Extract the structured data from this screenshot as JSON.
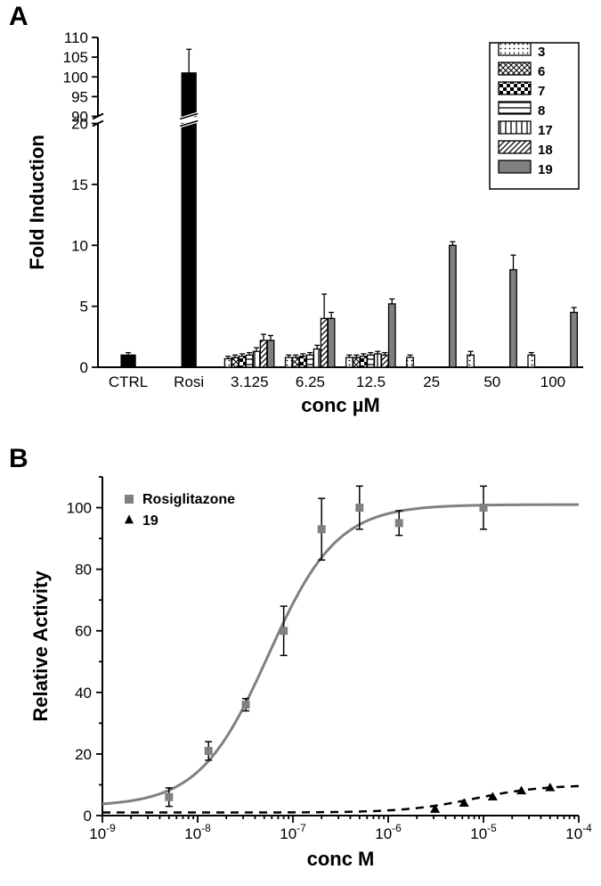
{
  "panelA": {
    "label": "A",
    "type": "bar",
    "ylabel": "Fold Induction",
    "xlabel": "conc µM",
    "axis_title_fontsize": 22,
    "tick_fontsize": 17,
    "legend_fontsize": 15,
    "y_lower": {
      "min": 0,
      "max": 20,
      "ticks": [
        0,
        5,
        10,
        15,
        20
      ]
    },
    "y_upper": {
      "min": 90,
      "max": 110,
      "ticks": [
        90,
        95,
        100,
        105,
        110
      ]
    },
    "categories": [
      "CTRL",
      "Rosi",
      "3.125",
      "6.25",
      "12.5",
      "25",
      "50",
      "100"
    ],
    "series": [
      {
        "name": "3",
        "pattern": "dots",
        "fill": "#ffffff"
      },
      {
        "name": "6",
        "pattern": "crosshatch",
        "fill": "#ffffff"
      },
      {
        "name": "7",
        "pattern": "checker",
        "fill": "#ffffff"
      },
      {
        "name": "8",
        "pattern": "hstripe",
        "fill": "#ffffff"
      },
      {
        "name": "17",
        "pattern": "vstripe",
        "fill": "#ffffff"
      },
      {
        "name": "18",
        "pattern": "diag",
        "fill": "#ffffff"
      },
      {
        "name": "19",
        "pattern": "solid",
        "fill": "#808080"
      }
    ],
    "ctrl": {
      "value": 1.0,
      "err": 0.2,
      "fill": "#000000"
    },
    "rosi": {
      "value": 101,
      "err": 6,
      "fill": "#000000"
    },
    "groups": {
      "3.125": [
        0.7,
        0.8,
        0.9,
        1.0,
        1.3,
        2.2,
        2.2
      ],
      "6.25": [
        0.8,
        0.8,
        0.9,
        1.0,
        1.5,
        4.0,
        4.0
      ],
      "12.5": [
        0.8,
        0.8,
        0.9,
        1.0,
        1.1,
        1.0,
        5.2
      ],
      "25": [
        0.8,
        0,
        0,
        0,
        0,
        0,
        10.0
      ],
      "50": [
        1.0,
        0,
        0,
        0,
        0,
        0,
        8.0
      ],
      "100": [
        1.0,
        0,
        0,
        0,
        0,
        0,
        4.5
      ]
    },
    "errors": {
      "3.125": [
        0.2,
        0.2,
        0.2,
        0.2,
        0.3,
        0.5,
        0.4
      ],
      "6.25": [
        0.2,
        0.2,
        0.2,
        0.2,
        0.3,
        2.0,
        0.5
      ],
      "12.5": [
        0.2,
        0.2,
        0.2,
        0.2,
        0.2,
        0.2,
        0.4
      ],
      "25": [
        0.2,
        0,
        0,
        0,
        0,
        0,
        0.3
      ],
      "50": [
        0.3,
        0,
        0,
        0,
        0,
        0,
        1.2
      ],
      "100": [
        0.2,
        0,
        0,
        0,
        0,
        0,
        0.4
      ]
    },
    "colors": {
      "axis": "#000000",
      "bar_stroke": "#000000",
      "background": "#ffffff"
    }
  },
  "panelB": {
    "label": "B",
    "type": "dose-response",
    "ylabel": "Relative Activity",
    "xlabel": "conc M",
    "axis_title_fontsize": 22,
    "tick_fontsize": 17,
    "legend_fontsize": 16,
    "x_log": true,
    "xlim": [
      1e-09,
      0.0001
    ],
    "ylim": [
      0,
      110
    ],
    "yticks": [
      0,
      20,
      40,
      60,
      80,
      100
    ],
    "xticks_exp": [
      -9,
      -8,
      -7,
      -6,
      -5,
      -4
    ],
    "series": [
      {
        "name": "Rosiglitazone",
        "marker": "square",
        "marker_size": 8,
        "color": "#808080",
        "line_style": "solid",
        "line_width": 3,
        "points": [
          {
            "x": 5e-09,
            "y": 6,
            "err": 3
          },
          {
            "x": 1.3e-08,
            "y": 21,
            "err": 3
          },
          {
            "x": 3.2e-08,
            "y": 36,
            "err": 2
          },
          {
            "x": 8e-08,
            "y": 60,
            "err": 8
          },
          {
            "x": 2e-07,
            "y": 93,
            "err": 10
          },
          {
            "x": 5e-07,
            "y": 100,
            "err": 7
          },
          {
            "x": 1.3e-06,
            "y": 95,
            "err": 4
          },
          {
            "x": 1e-05,
            "y": 100,
            "err": 7
          }
        ],
        "curve": {
          "bottom": 3,
          "top": 101,
          "ec50": 5.5e-08,
          "hill": 1.2
        }
      },
      {
        "name": "19",
        "marker": "triangle",
        "marker_size": 8,
        "color": "#000000",
        "line_style": "dashed",
        "line_width": 2.5,
        "points": [
          {
            "x": 3.1e-06,
            "y": 2,
            "err": 0
          },
          {
            "x": 6.25e-06,
            "y": 4,
            "err": 0
          },
          {
            "x": 1.25e-05,
            "y": 6,
            "err": 0
          },
          {
            "x": 2.5e-05,
            "y": 8,
            "err": 0
          },
          {
            "x": 5e-05,
            "y": 9,
            "err": 0
          }
        ],
        "curve": {
          "bottom": 1,
          "top": 10,
          "ec50": 8e-06,
          "hill": 1.2
        }
      }
    ],
    "colors": {
      "axis": "#000000",
      "background": "#ffffff"
    }
  }
}
